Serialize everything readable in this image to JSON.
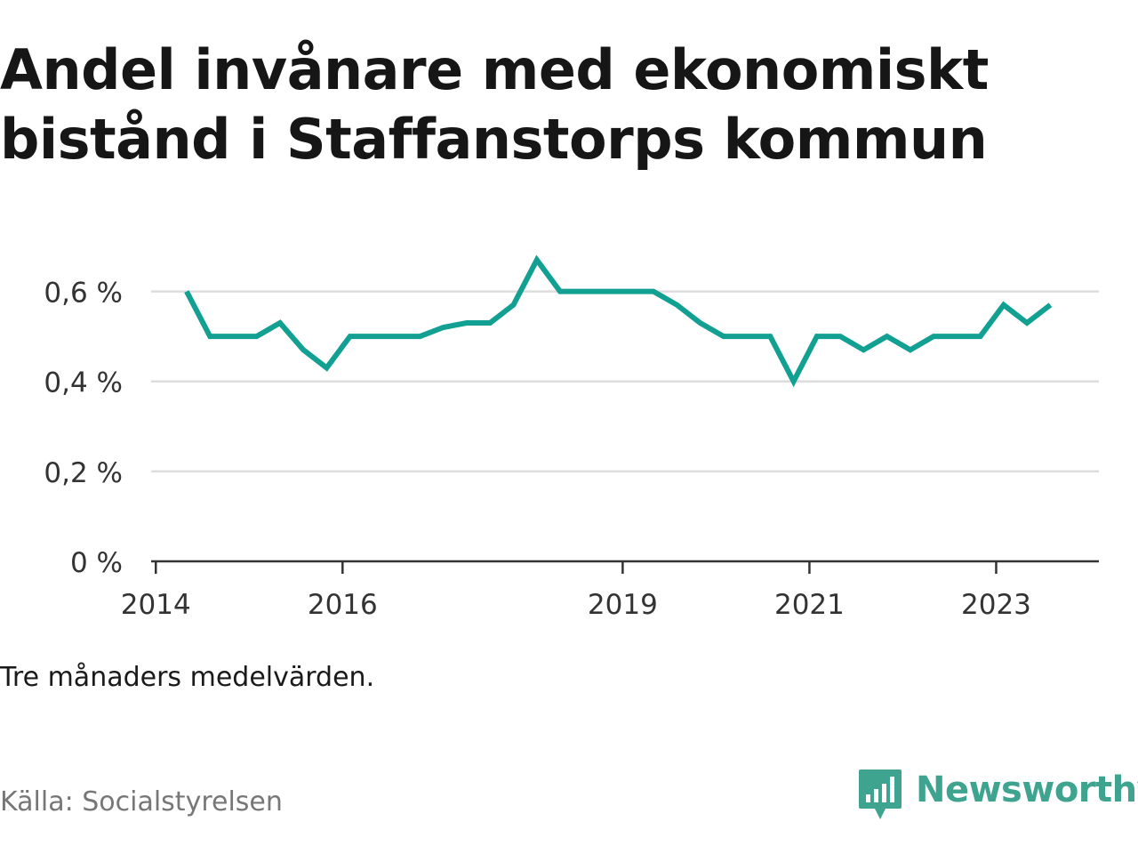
{
  "title": "Andel invånare med ekonomiskt bistånd i Staffanstorps kommun",
  "note": "Tre månaders medelvärden.",
  "source": "Källa: Socialstyrelsen",
  "brand": {
    "name": "Newsworthy",
    "color": "#3ea38f"
  },
  "chart_data": {
    "type": "line",
    "title": "Andel invånare med ekonomiskt bistånd i Staffanstorps kommun",
    "xlabel": "",
    "ylabel": "",
    "xlim": [
      2013.9,
      2024.0
    ],
    "ylim": [
      0,
      0.7
    ],
    "grid": true,
    "line_color": "#12a092",
    "x_ticks": [
      {
        "value": 2014,
        "label": "2014"
      },
      {
        "value": 2016,
        "label": "2016"
      },
      {
        "value": 2019,
        "label": "2019"
      },
      {
        "value": 2021,
        "label": "2021"
      },
      {
        "value": 2023,
        "label": "2023"
      }
    ],
    "y_ticks": [
      {
        "value": 0,
        "label": "0 %"
      },
      {
        "value": 0.2,
        "label": "0,2 %"
      },
      {
        "value": 0.4,
        "label": "0,4 %"
      },
      {
        "value": 0.6,
        "label": "0,6 %"
      }
    ],
    "series": [
      {
        "x": [
          2014.33,
          2014.58,
          2014.83,
          2015.08,
          2015.33,
          2015.58,
          2015.83,
          2016.08,
          2016.33,
          2016.58,
          2016.83,
          2017.08,
          2017.33,
          2017.58,
          2017.83,
          2018.08,
          2018.33,
          2018.58,
          2018.83,
          2019.08,
          2019.33,
          2019.58,
          2019.83,
          2020.08,
          2020.33,
          2020.58,
          2020.83,
          2021.08,
          2021.33,
          2021.58,
          2021.83,
          2022.08,
          2022.33,
          2022.58,
          2022.83,
          2023.08,
          2023.33,
          2023.58
        ],
        "values": [
          0.6,
          0.5,
          0.5,
          0.5,
          0.53,
          0.47,
          0.43,
          0.5,
          0.5,
          0.5,
          0.5,
          0.52,
          0.53,
          0.53,
          0.57,
          0.67,
          0.6,
          0.6,
          0.6,
          0.6,
          0.6,
          0.57,
          0.53,
          0.5,
          0.5,
          0.5,
          0.4,
          0.5,
          0.5,
          0.47,
          0.5,
          0.47,
          0.5,
          0.5,
          0.5,
          0.57,
          0.53,
          0.57
        ]
      }
    ]
  }
}
